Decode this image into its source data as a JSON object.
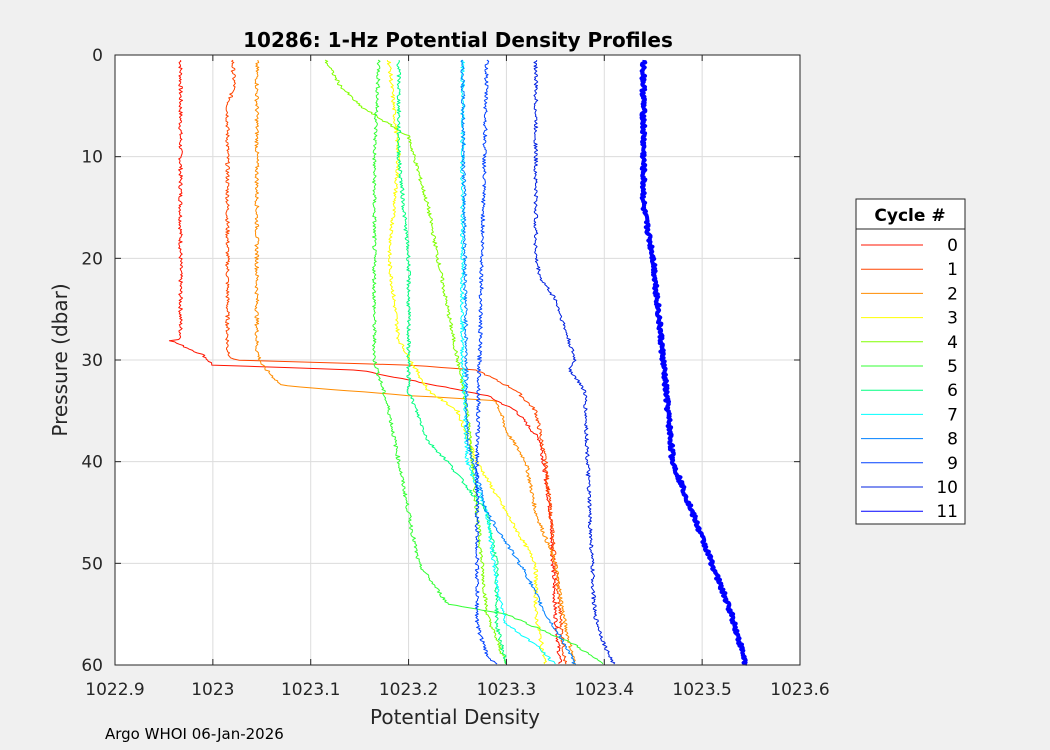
{
  "chart_data": {
    "type": "line",
    "title": "10286: 1-Hz Potential Density Profiles",
    "xlabel": "Potential Density",
    "ylabel": "Pressure (dbar)",
    "xlim": [
      1022.9,
      1023.6
    ],
    "ylim": [
      0,
      60
    ],
    "y_reversed": true,
    "grid": true,
    "xticks": [
      "1022.9",
      "1023",
      "1023.1",
      "1023.2",
      "1023.3",
      "1023.4",
      "1023.5",
      "1023.6"
    ],
    "xtick_values": [
      1022.9,
      1023.0,
      1023.1,
      1023.2,
      1023.3,
      1023.4,
      1023.5,
      1023.6
    ],
    "yticks": [
      "0",
      "10",
      "20",
      "30",
      "40",
      "50",
      "60"
    ],
    "ytick_values": [
      0,
      10,
      20,
      30,
      40,
      50,
      60
    ],
    "legend": {
      "title": "Cycle #",
      "placement": "right"
    },
    "series": [
      {
        "name": "0",
        "color": "#ff1400",
        "points": [
          [
            0.5,
            1022.967
          ],
          [
            28,
            1022.967
          ],
          [
            28,
            1022.955
          ],
          [
            29.5,
            1022.99
          ],
          [
            30.5,
            1023.0
          ],
          [
            31,
            1023.15
          ],
          [
            33.5,
            1023.28
          ],
          [
            35,
            1023.31
          ],
          [
            38,
            1023.335
          ],
          [
            45,
            1023.345
          ],
          [
            55,
            1023.35
          ],
          [
            60,
            1023.355
          ]
        ]
      },
      {
        "name": "1",
        "color": "#ff4500",
        "points": [
          [
            0.5,
            1023.02
          ],
          [
            3,
            1023.022
          ],
          [
            5,
            1023.015
          ],
          [
            29,
            1023.015
          ],
          [
            30,
            1023.02
          ],
          [
            30.5,
            1023.2
          ],
          [
            31,
            1023.27
          ],
          [
            33,
            1023.31
          ],
          [
            35,
            1023.33
          ],
          [
            40,
            1023.34
          ],
          [
            50,
            1023.35
          ],
          [
            60,
            1023.36
          ]
        ]
      },
      {
        "name": "2",
        "color": "#ff8c00",
        "points": [
          [
            0.5,
            1023.045
          ],
          [
            29,
            1023.045
          ],
          [
            30.5,
            1023.05
          ],
          [
            32.5,
            1023.07
          ],
          [
            33.5,
            1023.2
          ],
          [
            34,
            1023.29
          ],
          [
            37,
            1023.3
          ],
          [
            40,
            1023.32
          ],
          [
            45,
            1023.33
          ],
          [
            50,
            1023.35
          ],
          [
            56,
            1023.36
          ],
          [
            60,
            1023.37
          ]
        ]
      },
      {
        "name": "3",
        "color": "#ffff00",
        "points": [
          [
            0.5,
            1023.18
          ],
          [
            10,
            1023.19
          ],
          [
            20,
            1023.18
          ],
          [
            28,
            1023.19
          ],
          [
            33,
            1023.22
          ],
          [
            35,
            1023.25
          ],
          [
            40,
            1023.27
          ],
          [
            45,
            1023.3
          ],
          [
            50,
            1023.33
          ],
          [
            55,
            1023.33
          ],
          [
            60,
            1023.34
          ]
        ]
      },
      {
        "name": "4",
        "color": "#80ff00",
        "points": [
          [
            0.5,
            1023.115
          ],
          [
            3,
            1023.13
          ],
          [
            5,
            1023.15
          ],
          [
            8,
            1023.2
          ],
          [
            15,
            1023.22
          ],
          [
            25,
            1023.24
          ],
          [
            35,
            1023.26
          ],
          [
            45,
            1023.27
          ],
          [
            55,
            1023.28
          ],
          [
            60,
            1023.3
          ]
        ]
      },
      {
        "name": "5",
        "color": "#33ff33",
        "points": [
          [
            0.5,
            1023.17
          ],
          [
            10,
            1023.165
          ],
          [
            30,
            1023.165
          ],
          [
            35,
            1023.18
          ],
          [
            40,
            1023.19
          ],
          [
            45,
            1023.2
          ],
          [
            50,
            1023.21
          ],
          [
            54,
            1023.24
          ],
          [
            55,
            1023.3
          ],
          [
            58,
            1023.37
          ],
          [
            60,
            1023.4
          ]
        ]
      },
      {
        "name": "6",
        "color": "#00ff80",
        "points": [
          [
            0.5,
            1023.19
          ],
          [
            10,
            1023.19
          ],
          [
            20,
            1023.2
          ],
          [
            33,
            1023.2
          ],
          [
            38,
            1023.22
          ],
          [
            40,
            1023.24
          ],
          [
            45,
            1023.28
          ],
          [
            50,
            1023.29
          ],
          [
            56,
            1023.29
          ],
          [
            60,
            1023.3
          ]
        ]
      },
      {
        "name": "7",
        "color": "#00ffff",
        "points": [
          [
            0.5,
            1023.255
          ],
          [
            30,
            1023.255
          ],
          [
            40,
            1023.26
          ],
          [
            45,
            1023.28
          ],
          [
            52,
            1023.29
          ],
          [
            56,
            1023.3
          ],
          [
            58,
            1023.33
          ],
          [
            60,
            1023.35
          ]
        ]
      },
      {
        "name": "8",
        "color": "#0080ff",
        "points": [
          [
            0.5,
            1023.255
          ],
          [
            38,
            1023.26
          ],
          [
            45,
            1023.28
          ],
          [
            48,
            1023.3
          ],
          [
            51,
            1023.32
          ],
          [
            55,
            1023.34
          ],
          [
            58,
            1023.36
          ],
          [
            60,
            1023.37
          ]
        ]
      },
      {
        "name": "9",
        "color": "#0040ff",
        "points": [
          [
            0.5,
            1023.28
          ],
          [
            20,
            1023.275
          ],
          [
            40,
            1023.27
          ],
          [
            50,
            1023.27
          ],
          [
            56,
            1023.27
          ],
          [
            59,
            1023.28
          ],
          [
            60,
            1023.29
          ]
        ]
      },
      {
        "name": "10",
        "color": "#0020e0",
        "points": [
          [
            0.5,
            1023.33
          ],
          [
            20,
            1023.33
          ],
          [
            22,
            1023.335
          ],
          [
            24,
            1023.35
          ],
          [
            27,
            1023.36
          ],
          [
            30,
            1023.37
          ],
          [
            31,
            1023.365
          ],
          [
            33,
            1023.38
          ],
          [
            45,
            1023.385
          ],
          [
            55,
            1023.39
          ],
          [
            58,
            1023.4
          ],
          [
            60,
            1023.41
          ]
        ]
      },
      {
        "name": "11",
        "color": "#0000ff",
        "thick": true,
        "points": [
          [
            0.5,
            1023.44
          ],
          [
            15,
            1023.44
          ],
          [
            20,
            1023.45
          ],
          [
            30,
            1023.46
          ],
          [
            40,
            1023.47
          ],
          [
            45,
            1023.49
          ],
          [
            50,
            1023.51
          ],
          [
            55,
            1023.53
          ],
          [
            60,
            1023.545
          ]
        ]
      }
    ]
  },
  "footer": "Argo WHOI 06-Jan-2026"
}
